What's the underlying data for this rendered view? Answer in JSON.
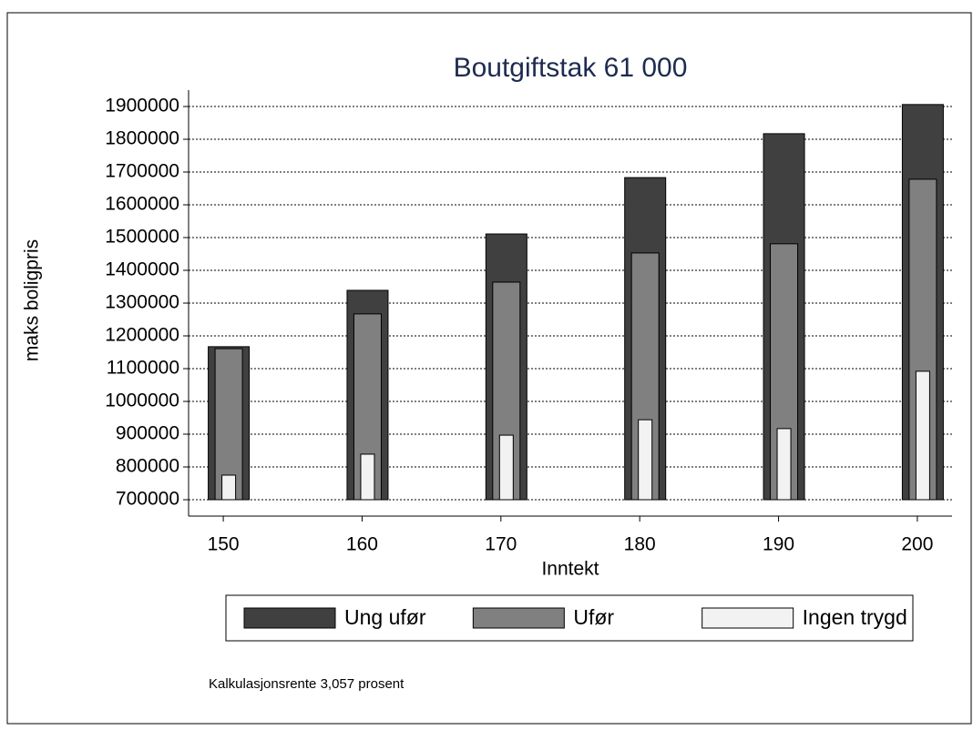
{
  "chart_data": {
    "type": "bar",
    "title": "Boutgiftstak 61 000",
    "x_label": "Inntekt",
    "y_label": "maks boligpris",
    "note": "Kalkulasjonsrente 3,057 prosent",
    "x": [
      150,
      160,
      170,
      180,
      190,
      200
    ],
    "xlim": [
      147.5,
      202.5
    ],
    "xticks": [
      150,
      160,
      170,
      180,
      190,
      200
    ],
    "ylim": [
      650000,
      1950000
    ],
    "yticks": [
      700000,
      800000,
      900000,
      1000000,
      1100000,
      1200000,
      1300000,
      1400000,
      1500000,
      1600000,
      1700000,
      1800000,
      1900000
    ],
    "grid": true,
    "legend": "bottom",
    "series": [
      {
        "name": "Ung ufør",
        "color": "#404040",
        "values": [
          1167000,
          1339000,
          1511000,
          1683000,
          1817000,
          1906000
        ]
      },
      {
        "name": "Ufør",
        "color": "#808080",
        "values": [
          1161000,
          1267000,
          1364000,
          1453000,
          1481000,
          1678000
        ]
      },
      {
        "name": "Ingen trygd",
        "color": "#f2f2f2",
        "values": [
          775000,
          839000,
          897000,
          944000,
          917000,
          1092000
        ]
      }
    ]
  }
}
